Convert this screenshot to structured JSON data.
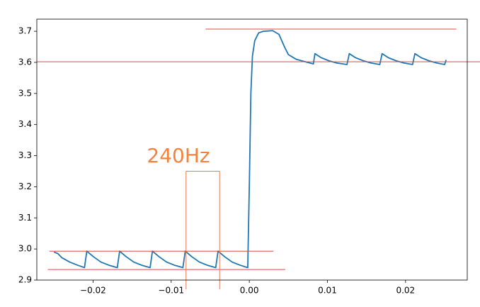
{
  "chart_data": {
    "type": "line",
    "color": "#1f77b4",
    "x": [
      -0.025,
      -0.0245,
      -0.024,
      -0.023,
      -0.022,
      -0.0211,
      -0.0208,
      -0.02,
      -0.019,
      -0.018,
      -0.0169,
      -0.0166,
      -0.0158,
      -0.0148,
      -0.0138,
      -0.0127,
      -0.0124,
      -0.0116,
      -0.0106,
      -0.0096,
      -0.0085,
      -0.0082,
      -0.0074,
      -0.0064,
      -0.0054,
      -0.0043,
      -0.004,
      -0.0032,
      -0.0022,
      -0.0012,
      -0.0002,
      0.0,
      0.0002,
      0.0004,
      0.0007,
      0.0012,
      0.0018,
      0.003,
      0.0038,
      0.0045,
      0.005,
      0.006,
      0.007,
      0.0082,
      0.0084,
      0.0092,
      0.0102,
      0.0112,
      0.0125,
      0.0128,
      0.0136,
      0.0146,
      0.0156,
      0.0167,
      0.017,
      0.0178,
      0.0188,
      0.0198,
      0.0209,
      0.0212,
      0.022,
      0.023,
      0.024,
      0.025,
      0.0252
    ],
    "values": [
      2.99,
      2.985,
      2.972,
      2.958,
      2.948,
      2.94,
      2.993,
      2.976,
      2.958,
      2.948,
      2.94,
      2.993,
      2.976,
      2.958,
      2.948,
      2.94,
      2.993,
      2.976,
      2.958,
      2.948,
      2.94,
      2.993,
      2.976,
      2.958,
      2.948,
      2.94,
      2.993,
      2.976,
      2.958,
      2.948,
      2.94,
      3.2,
      3.5,
      3.62,
      3.67,
      3.695,
      3.7,
      3.702,
      3.69,
      3.65,
      3.625,
      3.61,
      3.603,
      3.595,
      3.628,
      3.615,
      3.605,
      3.598,
      3.593,
      3.628,
      3.615,
      3.605,
      3.598,
      3.593,
      3.628,
      3.615,
      3.605,
      3.598,
      3.593,
      3.628,
      3.615,
      3.605,
      3.598,
      3.593,
      3.608
    ],
    "xlim": [
      -0.0272,
      0.0279
    ],
    "ylim": [
      2.9,
      3.739
    ],
    "xticks": [
      {
        "value": -0.02,
        "label": "−0.02"
      },
      {
        "value": -0.01,
        "label": "−0.01"
      },
      {
        "value": 0,
        "label": "0.00"
      },
      {
        "value": 0.01,
        "label": "0.01"
      },
      {
        "value": 0.02,
        "label": "0.02"
      }
    ],
    "yticks": [
      2.9,
      {
        "value": 3.0,
        "label": "3.0"
      },
      3.1,
      3.2,
      3.3,
      3.4,
      3.5,
      3.6,
      3.7
    ],
    "reference_lines": [
      {
        "y": 3.602,
        "x": [
          -0.0272,
          0.0303
        ],
        "color": "#e04848"
      },
      {
        "y": 3.707,
        "x": [
          -0.0056,
          0.0265
        ],
        "color": "#e04848"
      },
      {
        "y": 2.993,
        "x": [
          -0.0256,
          0.0031
        ],
        "color": "#e04848"
      },
      {
        "y": 2.934,
        "x": [
          -0.0258,
          0.0046
        ],
        "color": "#e04848"
      }
    ],
    "period_marks": [
      {
        "x": -0.0081,
        "y": [
          2.87,
          3.25
        ],
        "color": "#f07850"
      },
      {
        "x": -0.0038,
        "y": [
          2.87,
          3.25
        ],
        "color": "#f07850"
      }
    ],
    "period_bar": {
      "y": 3.25,
      "x": [
        -0.0081,
        -0.0038
      ],
      "color": "#f07850"
    },
    "annotation": {
      "text": "240Hz",
      "color": "#f5823c"
    }
  }
}
